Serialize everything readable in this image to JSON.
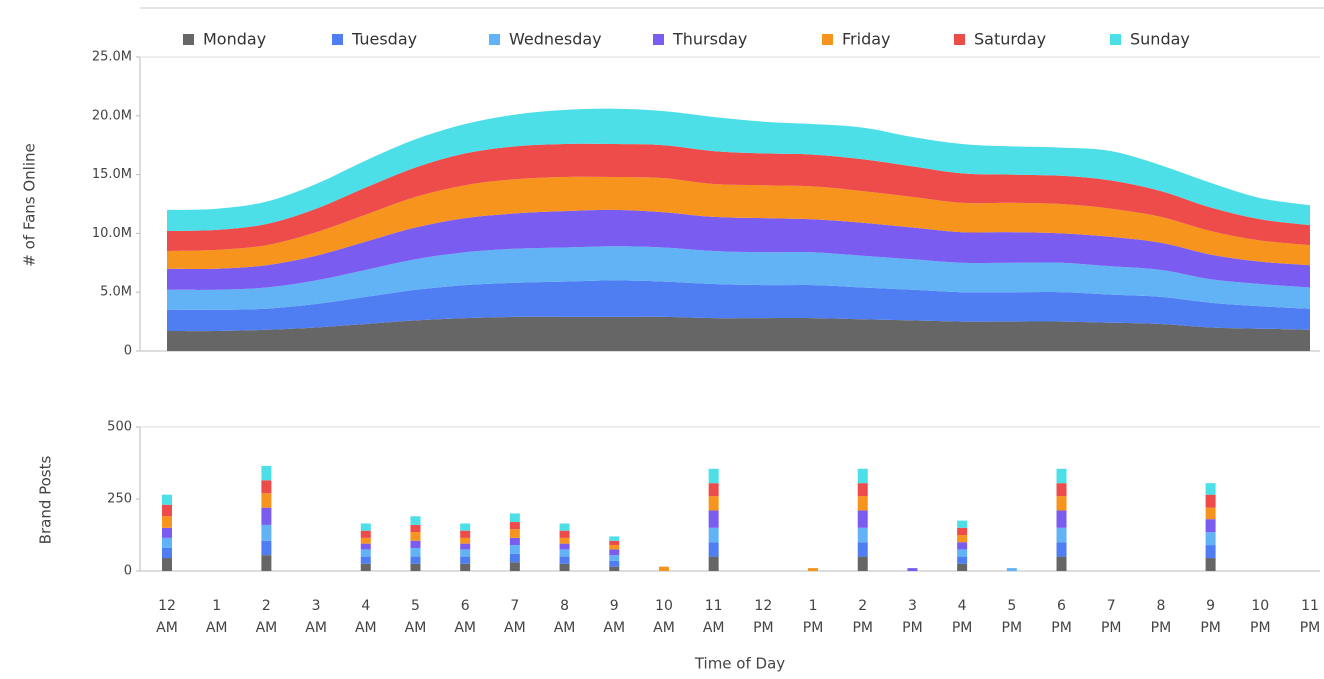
{
  "chart_data": [
    {
      "type": "area",
      "y_label": "# of Fans Online",
      "categories": [
        "12 AM",
        "1 AM",
        "2 AM",
        "3 AM",
        "4 AM",
        "5 AM",
        "6 AM",
        "7 AM",
        "8 AM",
        "9 AM",
        "10 AM",
        "11 AM",
        "12 PM",
        "1 PM",
        "2 PM",
        "3 PM",
        "4 PM",
        "5 PM",
        "6 PM",
        "7 PM",
        "8 PM",
        "9 PM",
        "10 PM",
        "11 PM"
      ],
      "ylim": [
        0,
        25000000
      ],
      "yticks": [
        0,
        {
          "value": 5000000,
          "label": "5.0M"
        },
        {
          "value": 10000000,
          "label": "10.0M"
        },
        {
          "value": 15000000,
          "label": "15.0M"
        },
        {
          "value": 20000000,
          "label": "20.0M"
        },
        {
          "value": 25000000,
          "label": "25.0M"
        }
      ],
      "legend": "top",
      "series": [
        {
          "name": "Monday",
          "color": "#666666",
          "values": [
            1700000,
            1700000,
            1800000,
            2000000,
            2300000,
            2600000,
            2800000,
            2900000,
            2900000,
            2900000,
            2900000,
            2800000,
            2800000,
            2800000,
            2700000,
            2600000,
            2500000,
            2500000,
            2500000,
            2400000,
            2300000,
            2000000,
            1900000,
            1800000
          ]
        },
        {
          "name": "Tuesday",
          "color": "#4f7df2",
          "values": [
            1800000,
            1800000,
            1800000,
            2000000,
            2300000,
            2600000,
            2800000,
            2900000,
            3000000,
            3100000,
            3000000,
            2900000,
            2800000,
            2800000,
            2700000,
            2600000,
            2500000,
            2500000,
            2500000,
            2400000,
            2300000,
            2100000,
            1900000,
            1800000
          ]
        },
        {
          "name": "Wednesday",
          "color": "#62b3f5",
          "values": [
            1700000,
            1700000,
            1800000,
            2000000,
            2300000,
            2600000,
            2800000,
            2900000,
            2900000,
            2900000,
            2900000,
            2800000,
            2800000,
            2800000,
            2700000,
            2600000,
            2500000,
            2500000,
            2500000,
            2400000,
            2300000,
            2000000,
            1900000,
            1800000
          ]
        },
        {
          "name": "Thursday",
          "color": "#7b5cf0",
          "values": [
            1800000,
            1800000,
            1900000,
            2100000,
            2400000,
            2700000,
            2900000,
            3000000,
            3100000,
            3100000,
            3000000,
            2900000,
            2900000,
            2800000,
            2800000,
            2700000,
            2600000,
            2600000,
            2500000,
            2500000,
            2300000,
            2100000,
            1900000,
            1900000
          ]
        },
        {
          "name": "Friday",
          "color": "#f7941d",
          "values": [
            1500000,
            1600000,
            1700000,
            2000000,
            2300000,
            2600000,
            2800000,
            2900000,
            2900000,
            2800000,
            2900000,
            2800000,
            2800000,
            2800000,
            2700000,
            2600000,
            2500000,
            2500000,
            2500000,
            2400000,
            2200000,
            2000000,
            1800000,
            1700000
          ]
        },
        {
          "name": "Saturday",
          "color": "#ee4b4b",
          "values": [
            1700000,
            1700000,
            1800000,
            2000000,
            2300000,
            2500000,
            2700000,
            2800000,
            2800000,
            2800000,
            2800000,
            2800000,
            2700000,
            2700000,
            2700000,
            2600000,
            2500000,
            2400000,
            2400000,
            2400000,
            2200000,
            2000000,
            1800000,
            1700000
          ]
        },
        {
          "name": "Sunday",
          "color": "#4ddfe8",
          "values": [
            1800000,
            1800000,
            1900000,
            2100000,
            2300000,
            2400000,
            2500000,
            2700000,
            2900000,
            3000000,
            2900000,
            2900000,
            2700000,
            2600000,
            2700000,
            2500000,
            2500000,
            2400000,
            2400000,
            2500000,
            2200000,
            2100000,
            1800000,
            1700000
          ]
        }
      ]
    },
    {
      "type": "stacked_bar",
      "y_label": "Brand Posts",
      "x_label": "Time of Day",
      "ylim": [
        0,
        500
      ],
      "yticks": [
        0,
        250,
        500
      ],
      "series": [
        {
          "color": "#666666",
          "values": [
            45,
            0,
            55,
            0,
            25,
            25,
            25,
            30,
            25,
            15,
            0,
            50,
            0,
            0,
            50,
            0,
            25,
            0,
            50,
            0,
            0,
            45,
            0,
            0
          ]
        },
        {
          "color": "#4f7df2",
          "values": [
            35,
            0,
            50,
            0,
            25,
            25,
            25,
            30,
            25,
            20,
            0,
            50,
            0,
            0,
            50,
            0,
            25,
            0,
            50,
            0,
            0,
            45,
            0,
            0
          ]
        },
        {
          "color": "#62b3f5",
          "values": [
            35,
            0,
            55,
            0,
            25,
            30,
            25,
            30,
            25,
            20,
            0,
            50,
            0,
            0,
            50,
            0,
            25,
            10,
            50,
            0,
            0,
            45,
            0,
            0
          ]
        },
        {
          "color": "#7b5cf0",
          "values": [
            35,
            0,
            60,
            0,
            20,
            25,
            20,
            25,
            20,
            20,
            0,
            60,
            0,
            0,
            60,
            10,
            25,
            0,
            60,
            0,
            0,
            45,
            0,
            0
          ]
        },
        {
          "color": "#f7941d",
          "values": [
            40,
            0,
            50,
            0,
            20,
            30,
            20,
            30,
            20,
            15,
            15,
            50,
            0,
            10,
            50,
            0,
            25,
            0,
            50,
            0,
            0,
            40,
            0,
            0
          ]
        },
        {
          "color": "#ee4b4b",
          "values": [
            40,
            0,
            45,
            0,
            25,
            25,
            25,
            25,
            25,
            15,
            0,
            45,
            0,
            0,
            45,
            0,
            25,
            0,
            45,
            0,
            0,
            45,
            0,
            0
          ]
        },
        {
          "color": "#4ddfe8",
          "values": [
            35,
            0,
            50,
            0,
            25,
            30,
            25,
            30,
            25,
            15,
            0,
            50,
            0,
            0,
            50,
            0,
            25,
            0,
            50,
            0,
            0,
            40,
            0,
            0
          ]
        }
      ]
    }
  ]
}
